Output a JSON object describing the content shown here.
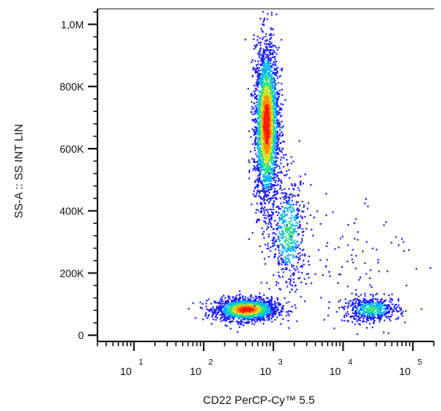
{
  "chart_data": {
    "type": "scatter",
    "subtype": "flow-cytometry-density-dot-plot",
    "xlabel": "CD22 PerCP-Cy™ 5.5",
    "ylabel": "SS-A :: SS INT LIN",
    "x_scale": "log",
    "xlim": [
      3,
      200000
    ],
    "ylim": [
      -20000,
      1050000
    ],
    "x_ticks": [
      {
        "base": "10",
        "exp": "1",
        "value": 10
      },
      {
        "base": "10",
        "exp": "2",
        "value": 100
      },
      {
        "base": "10",
        "exp": "3",
        "value": 1000
      },
      {
        "base": "10",
        "exp": "4",
        "value": 10000
      },
      {
        "base": "10",
        "exp": "5",
        "value": 100000
      }
    ],
    "y_ticks": [
      {
        "label": "0",
        "value": 0
      },
      {
        "label": "200K",
        "value": 200000
      },
      {
        "label": "400K",
        "value": 400000
      },
      {
        "label": "600K",
        "value": 600000
      },
      {
        "label": "800K",
        "value": 800000
      },
      {
        "label": "1,0M",
        "value": 1000000
      }
    ],
    "color_scale": [
      "#1a1aff",
      "#00b4ff",
      "#2ee080",
      "#d8e020",
      "#ff8c00",
      "#ff1a00"
    ],
    "populations": [
      {
        "x_center": 400,
        "y_center": 85000,
        "x_spread_decades": 0.22,
        "y_spread": 18000,
        "density": "high",
        "count": 1700
      },
      {
        "x_center": 780,
        "y_center": 680000,
        "x_spread_decades": 0.09,
        "y_spread": 130000,
        "density": "high",
        "count": 2600
      },
      {
        "x_center": 1600,
        "y_center": 330000,
        "x_spread_decades": 0.13,
        "y_spread": 90000,
        "density": "medium",
        "count": 550
      },
      {
        "x_center": 25000,
        "y_center": 85000,
        "x_spread_decades": 0.2,
        "y_spread": 20000,
        "density": "medium",
        "count": 520
      },
      {
        "x_center": 10000,
        "y_center": 250000,
        "x_spread_decades": 0.5,
        "y_spread": 120000,
        "density": "sparse",
        "count": 120
      }
    ]
  }
}
